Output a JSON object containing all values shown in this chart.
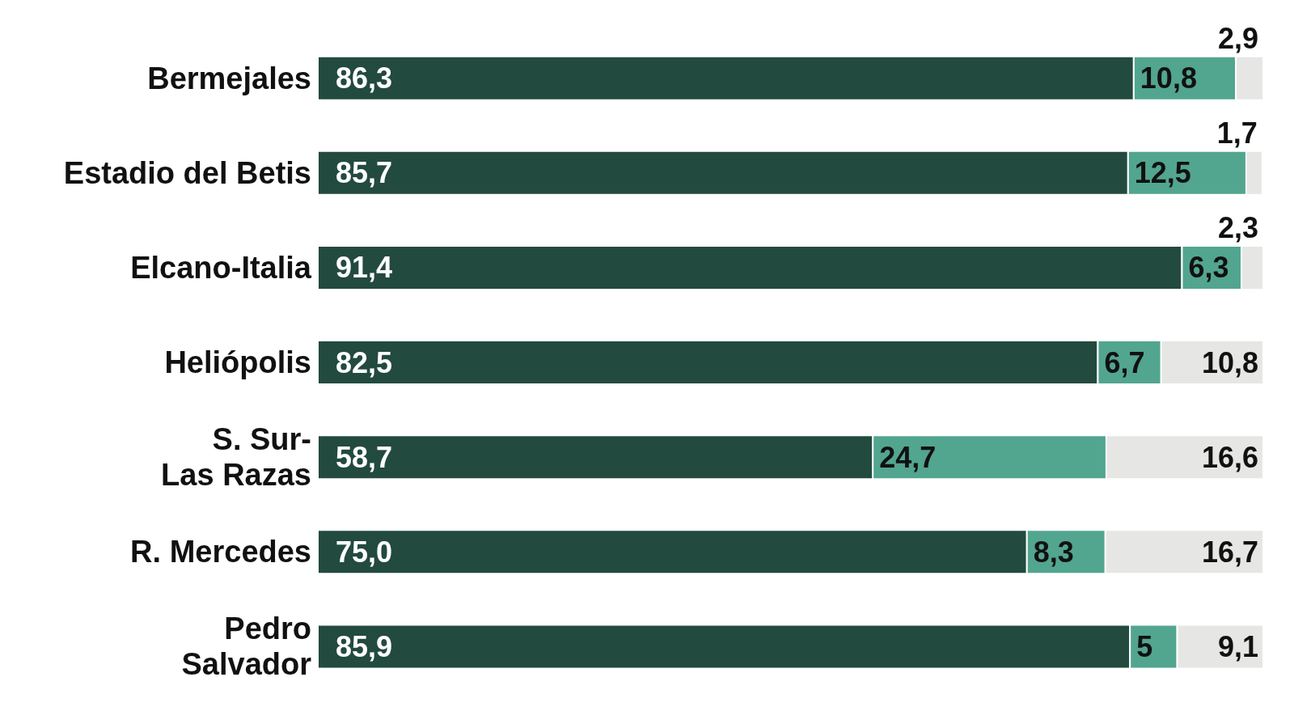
{
  "chart_data": {
    "type": "bar",
    "orientation": "horizontal",
    "stacked": true,
    "categories": [
      "Bermejales",
      "Estadio del Betis",
      "Elcano-Italia",
      "Heliópolis",
      "S. Sur-\nLas Razas",
      "R. Mercedes",
      "Pedro\nSalvador"
    ],
    "xlim": [
      0,
      100
    ],
    "tick_labels": "y",
    "series": [
      {
        "color": "#234a3f",
        "values": [
          86.3,
          85.7,
          91.4,
          82.5,
          58.7,
          75.0,
          85.9
        ],
        "value_labels": [
          "86,3",
          "85,7",
          "91,4",
          "82,5",
          "58,7",
          "75,0",
          "85,9"
        ]
      },
      {
        "color": "#52a58f",
        "values": [
          10.8,
          12.5,
          6.3,
          6.7,
          24.7,
          8.3,
          5
        ],
        "value_labels": [
          "10,8",
          "12,5",
          "6,3",
          "6,7",
          "24,7",
          "8,3",
          "5"
        ]
      },
      {
        "color": "#e6e6e4",
        "values": [
          2.9,
          1.7,
          2.3,
          10.8,
          16.6,
          16.7,
          9.1
        ],
        "value_labels": [
          "2,9",
          "1,7",
          "2,3",
          "10,8",
          "16,6",
          "16,7",
          "9,1"
        ]
      }
    ]
  }
}
